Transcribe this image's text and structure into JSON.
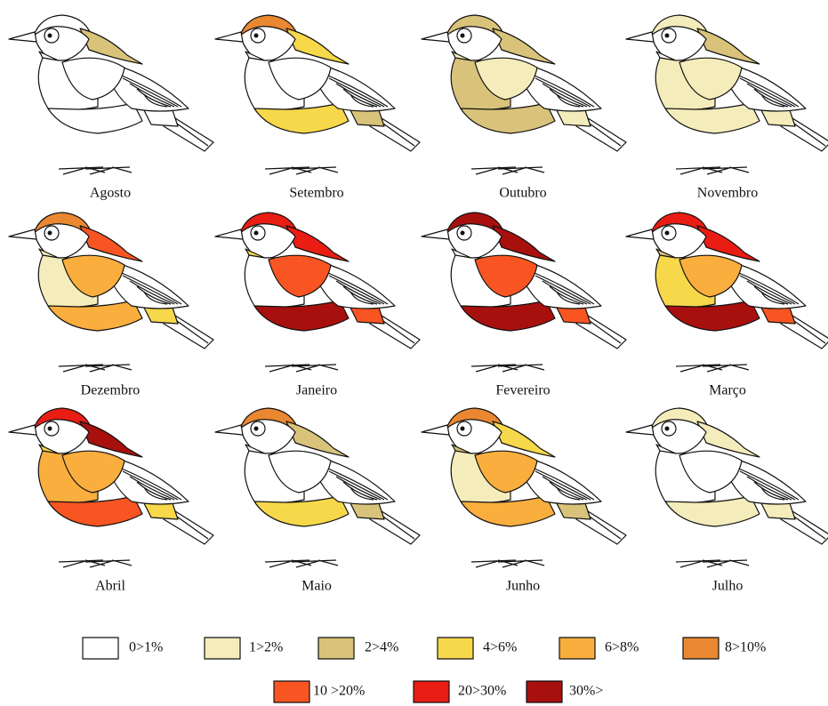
{
  "panels": [
    {
      "label": "Agosto"
    },
    {
      "label": "Setembro"
    },
    {
      "label": "Outubro"
    },
    {
      "label": "Novembro"
    },
    {
      "label": "Dezembro"
    },
    {
      "label": "Janeiro"
    },
    {
      "label": "Fevereiro"
    },
    {
      "label": "Março"
    },
    {
      "label": "Abril"
    },
    {
      "label": "Maio"
    },
    {
      "label": "Junho"
    },
    {
      "label": "Julho"
    }
  ],
  "legend": [
    {
      "label": "0>1%",
      "color": "#ffffff"
    },
    {
      "label": "1>2%",
      "color": "#f5ecbc"
    },
    {
      "label": "2>4%",
      "color": "#d9c27a"
    },
    {
      "label": "4>6%",
      "color": "#f7d84a"
    },
    {
      "label": "6>8%",
      "color": "#f9ae3e"
    },
    {
      "label": "8>10%",
      "color": "#ea8832"
    },
    {
      "label": "10 >20%",
      "color": "#f95522"
    },
    {
      "label": "20>30%",
      "color": "#ea1d14"
    },
    {
      "label": "30%>",
      "color": "#a8100e"
    }
  ]
}
